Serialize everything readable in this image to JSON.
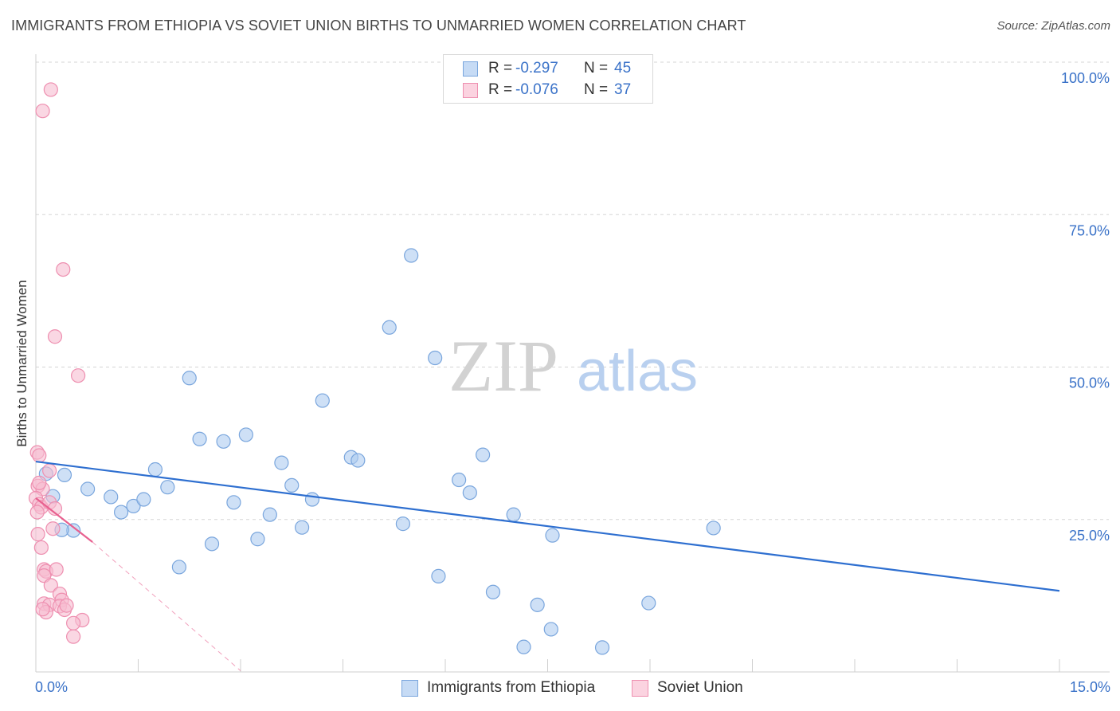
{
  "header": {
    "title": "IMMIGRANTS FROM ETHIOPIA VS SOVIET UNION BIRTHS TO UNMARRIED WOMEN CORRELATION CHART",
    "source": "Source: ZipAtlas.com"
  },
  "watermark": {
    "zip": "ZIP",
    "atlas": "atlas"
  },
  "legend_top": {
    "rows": [
      {
        "r_label": "R =",
        "r_value": "-0.297",
        "n_label": "N =",
        "n_value": "45"
      },
      {
        "r_label": "R =",
        "r_value": "-0.076",
        "n_label": "N =",
        "n_value": "37"
      }
    ]
  },
  "legend_bottom": {
    "items": [
      "Immigrants from Ethiopia",
      "Soviet Union"
    ]
  },
  "colors": {
    "blue_fill": "#aecbf0",
    "blue_stroke": "#7aa6dd",
    "blue_line": "#2e6fd0",
    "pink_fill": "#f7bdd0",
    "pink_stroke": "#ee8fb0",
    "pink_line": "#e8608f",
    "tick_text": "#3a72c8",
    "grid": "#d5d5d5"
  },
  "chart_data": {
    "type": "scatter",
    "title": "IMMIGRANTS FROM ETHIOPIA VS SOVIET UNION BIRTHS TO UNMARRIED WOMEN CORRELATION CHART",
    "xlabel": "",
    "ylabel": "Births to Unmarried Women",
    "xlim": [
      0,
      15
    ],
    "ylim": [
      0,
      100
    ],
    "x_tick_labels": [
      "0.0%",
      "15.0%"
    ],
    "y_ticks": [
      25,
      50,
      75,
      100
    ],
    "y_tick_labels": [
      "25.0%",
      "50.0%",
      "75.0%",
      "100.0%"
    ],
    "grid": true,
    "legend_placement": "bottom",
    "series": [
      {
        "name": "Immigrants from Ethiopia",
        "R": -0.297,
        "N": 45,
        "trend": {
          "x": [
            0,
            15
          ],
          "y": [
            34.5,
            13.3
          ]
        },
        "points": [
          {
            "x": 0.15,
            "y": 32.5
          },
          {
            "x": 0.25,
            "y": 28.8
          },
          {
            "x": 0.42,
            "y": 32.3
          },
          {
            "x": 0.76,
            "y": 30.0
          },
          {
            "x": 0.55,
            "y": 23.2
          },
          {
            "x": 1.1,
            "y": 28.7
          },
          {
            "x": 1.25,
            "y": 26.2
          },
          {
            "x": 1.43,
            "y": 27.2
          },
          {
            "x": 1.58,
            "y": 28.3
          },
          {
            "x": 1.75,
            "y": 33.2
          },
          {
            "x": 1.93,
            "y": 30.3
          },
          {
            "x": 2.1,
            "y": 17.2
          },
          {
            "x": 2.25,
            "y": 48.2
          },
          {
            "x": 2.4,
            "y": 38.2
          },
          {
            "x": 2.58,
            "y": 21.0
          },
          {
            "x": 2.75,
            "y": 37.8
          },
          {
            "x": 2.9,
            "y": 27.8
          },
          {
            "x": 3.08,
            "y": 38.9
          },
          {
            "x": 3.25,
            "y": 21.8
          },
          {
            "x": 3.43,
            "y": 25.8
          },
          {
            "x": 3.6,
            "y": 34.3
          },
          {
            "x": 3.75,
            "y": 30.6
          },
          {
            "x": 3.9,
            "y": 23.7
          },
          {
            "x": 4.05,
            "y": 28.3
          },
          {
            "x": 4.2,
            "y": 44.5
          },
          {
            "x": 4.62,
            "y": 35.2
          },
          {
            "x": 4.72,
            "y": 34.7
          },
          {
            "x": 5.18,
            "y": 56.5
          },
          {
            "x": 5.38,
            "y": 24.3
          },
          {
            "x": 5.5,
            "y": 68.3
          },
          {
            "x": 5.9,
            "y": 15.7
          },
          {
            "x": 5.85,
            "y": 51.5
          },
          {
            "x": 6.2,
            "y": 31.5
          },
          {
            "x": 6.36,
            "y": 29.4
          },
          {
            "x": 6.55,
            "y": 35.6
          },
          {
            "x": 6.7,
            "y": 13.1
          },
          {
            "x": 7.0,
            "y": 25.8
          },
          {
            "x": 7.15,
            "y": 4.1
          },
          {
            "x": 7.35,
            "y": 11.0
          },
          {
            "x": 7.57,
            "y": 22.4
          },
          {
            "x": 7.55,
            "y": 7.0
          },
          {
            "x": 8.3,
            "y": 4.0
          },
          {
            "x": 8.98,
            "y": 11.3
          },
          {
            "x": 9.93,
            "y": 23.6
          },
          {
            "x": 0.38,
            "y": 23.3
          }
        ]
      },
      {
        "name": "Soviet Union",
        "R": -0.076,
        "N": 37,
        "trend": {
          "x": [
            0,
            0.83
          ],
          "y": [
            28.5,
            21.3
          ]
        },
        "trend_extension": {
          "x": [
            0.83,
            3.0
          ],
          "y": [
            21.3,
            0.2
          ]
        },
        "points": [
          {
            "x": 0.22,
            "y": 95.5
          },
          {
            "x": 0.1,
            "y": 92.0
          },
          {
            "x": 0.4,
            "y": 66.0
          },
          {
            "x": 0.28,
            "y": 55.0
          },
          {
            "x": 0.62,
            "y": 48.6
          },
          {
            "x": 0.02,
            "y": 36.0
          },
          {
            "x": 0.05,
            "y": 35.5
          },
          {
            "x": 0.2,
            "y": 33.0
          },
          {
            "x": 0.03,
            "y": 30.5
          },
          {
            "x": 0.1,
            "y": 30.0
          },
          {
            "x": 0.0,
            "y": 28.5
          },
          {
            "x": 0.05,
            "y": 27.5
          },
          {
            "x": 0.08,
            "y": 27.0
          },
          {
            "x": 0.2,
            "y": 27.8
          },
          {
            "x": 0.28,
            "y": 26.8
          },
          {
            "x": 0.02,
            "y": 26.2
          },
          {
            "x": 0.25,
            "y": 23.5
          },
          {
            "x": 0.03,
            "y": 22.6
          },
          {
            "x": 0.08,
            "y": 20.4
          },
          {
            "x": 0.12,
            "y": 16.8
          },
          {
            "x": 0.15,
            "y": 16.5
          },
          {
            "x": 0.3,
            "y": 16.8
          },
          {
            "x": 0.12,
            "y": 15.8
          },
          {
            "x": 0.22,
            "y": 14.2
          },
          {
            "x": 0.35,
            "y": 12.8
          },
          {
            "x": 0.38,
            "y": 11.8
          },
          {
            "x": 0.12,
            "y": 11.2
          },
          {
            "x": 0.2,
            "y": 11.0
          },
          {
            "x": 0.35,
            "y": 10.8
          },
          {
            "x": 0.15,
            "y": 9.8
          },
          {
            "x": 0.42,
            "y": 10.2
          },
          {
            "x": 0.68,
            "y": 8.5
          },
          {
            "x": 0.55,
            "y": 8.0
          },
          {
            "x": 0.55,
            "y": 5.8
          },
          {
            "x": 0.1,
            "y": 10.3
          },
          {
            "x": 0.45,
            "y": 10.9
          },
          {
            "x": 0.05,
            "y": 31.0
          }
        ]
      }
    ]
  }
}
